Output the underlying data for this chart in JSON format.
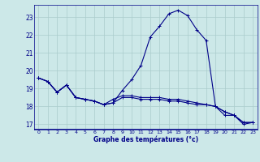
{
  "xlabel": "Graphe des températures (°c)",
  "bg_color": "#cce8e8",
  "plot_bg_color": "#cce8e8",
  "grid_color": "#aacccc",
  "line_color": "#000088",
  "axis_bar_color": "#000088",
  "line1": [
    19.6,
    19.4,
    18.8,
    19.2,
    18.5,
    18.4,
    18.3,
    18.1,
    18.2,
    18.9,
    19.5,
    20.3,
    21.9,
    22.5,
    23.2,
    23.4,
    23.1,
    22.3,
    21.7,
    18.0,
    17.5,
    17.5,
    17.0,
    17.1
  ],
  "line2": [
    19.6,
    19.4,
    18.8,
    19.2,
    18.5,
    18.4,
    18.3,
    18.1,
    18.2,
    18.5,
    18.5,
    18.4,
    18.4,
    18.4,
    18.3,
    18.3,
    18.2,
    18.1,
    18.1,
    18.0,
    17.7,
    17.5,
    17.1,
    17.1
  ],
  "line3": [
    19.6,
    19.4,
    18.8,
    19.2,
    18.5,
    18.4,
    18.3,
    18.1,
    18.4,
    18.6,
    18.6,
    18.5,
    18.5,
    18.5,
    18.4,
    18.4,
    18.3,
    18.2,
    18.1,
    18.0,
    17.7,
    17.5,
    17.1,
    17.1
  ],
  "xlim": [
    -0.5,
    23.5
  ],
  "ylim": [
    16.7,
    23.7
  ],
  "yticks": [
    17,
    18,
    19,
    20,
    21,
    22,
    23
  ],
  "xticks": [
    0,
    1,
    2,
    3,
    4,
    5,
    6,
    7,
    8,
    9,
    10,
    11,
    12,
    13,
    14,
    15,
    16,
    17,
    18,
    19,
    20,
    21,
    22,
    23
  ]
}
